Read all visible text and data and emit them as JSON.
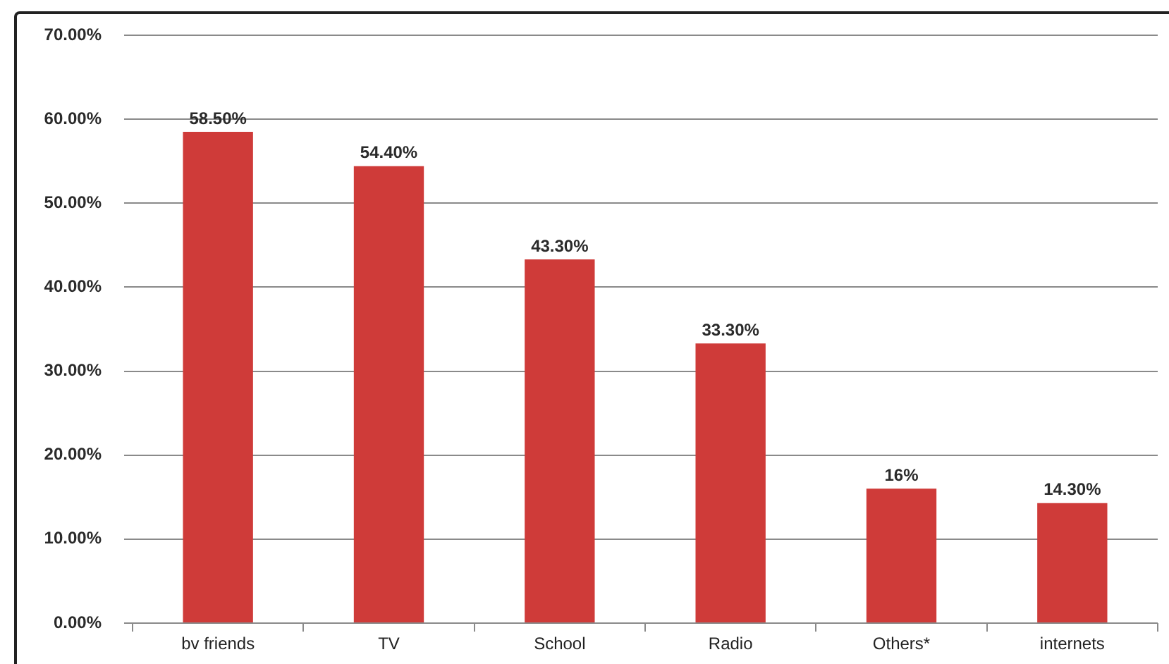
{
  "chart_data": {
    "type": "bar",
    "categories": [
      "bv friends",
      "TV",
      "School",
      "Radio",
      "Others*",
      "internets"
    ],
    "values": [
      58.5,
      54.4,
      43.3,
      33.3,
      16,
      14.3
    ],
    "color": "#cf3b39",
    "value_labels": [
      "58.50%",
      "54.40%",
      "43.30%",
      "33.30%",
      "16%",
      "14.30%"
    ],
    "ylim": [
      0,
      70
    ],
    "yticks": [
      {
        "value": 0,
        "label": "0.00%"
      },
      {
        "value": 10,
        "label": "10.00%"
      },
      {
        "value": 20,
        "label": "20.00%"
      },
      {
        "value": 30,
        "label": "30.00%"
      },
      {
        "value": 40,
        "label": "40.00%"
      },
      {
        "value": 50,
        "label": "50.00%"
      },
      {
        "value": 60,
        "label": "60.00%"
      },
      {
        "value": 70,
        "label": "70.00%"
      }
    ],
    "grid": "y"
  }
}
